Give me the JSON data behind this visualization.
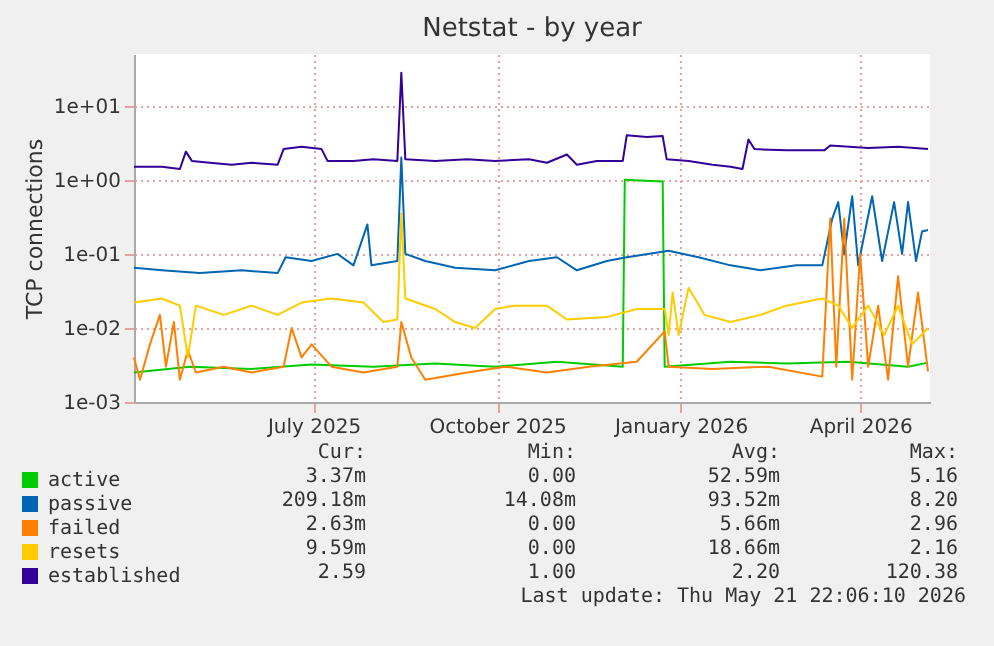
{
  "chart_data": {
    "type": "line",
    "title": "Netstat - by year",
    "ylabel": "TCP connections",
    "log": "y",
    "grid": true,
    "legend": "bottom",
    "line_style": "solid",
    "ylim": [
      0.001,
      50
    ],
    "yticks": [
      {
        "value": 0.001,
        "label": "1e-03"
      },
      {
        "value": 0.01,
        "label": "1e-02"
      },
      {
        "value": 0.1,
        "label": "1e-01"
      },
      {
        "value": 1,
        "label": "1e+00"
      },
      {
        "value": 10,
        "label": "1e+01"
      }
    ],
    "xlim": [
      "2025-04-17",
      "2026-05-21"
    ],
    "xticks": [
      {
        "value": "2025-07-16",
        "label": "July 2025"
      },
      {
        "value": "2025-10-16",
        "label": "October 2025"
      },
      {
        "value": "2026-01-16",
        "label": "January 2026"
      },
      {
        "value": "2026-04-16",
        "label": "April 2026"
      }
    ],
    "series": [
      {
        "name": "active",
        "color": "#00cc00",
        "x": [
          "2025-04-17",
          "2025-05-15",
          "2025-06-15",
          "2025-07-15",
          "2025-08-15",
          "2025-09-15",
          "2025-10-15",
          "2025-11-15",
          "2025-12-18",
          "2025-12-19",
          "2026-01-07",
          "2026-01-08",
          "2026-02-10",
          "2026-03-10",
          "2026-04-10",
          "2026-05-10",
          "2026-05-20"
        ],
        "values": [
          0.0025,
          0.003,
          0.0028,
          0.0032,
          0.003,
          0.0033,
          0.003,
          0.0035,
          0.003,
          1.0,
          0.95,
          0.003,
          0.0035,
          0.0033,
          0.0035,
          0.003,
          0.0034
        ]
      },
      {
        "name": "passive",
        "color": "#0066b3",
        "x": [
          "2025-04-17",
          "2025-05-01",
          "2025-05-20",
          "2025-06-10",
          "2025-06-28",
          "2025-07-02",
          "2025-07-15",
          "2025-07-28",
          "2025-08-05",
          "2025-08-12",
          "2025-08-14",
          "2025-08-27",
          "2025-08-29",
          "2025-08-31",
          "2025-09-10",
          "2025-09-25",
          "2025-10-15",
          "2025-11-01",
          "2025-11-15",
          "2025-11-25",
          "2025-12-10",
          "2025-12-20",
          "2026-01-10",
          "2026-01-25",
          "2026-02-10",
          "2026-02-25",
          "2026-03-15",
          "2026-03-28",
          "2026-04-02",
          "2026-04-05",
          "2026-04-08",
          "2026-04-12",
          "2026-04-15",
          "2026-04-22",
          "2026-04-27",
          "2026-05-03",
          "2026-05-07",
          "2026-05-10",
          "2026-05-14",
          "2026-05-17",
          "2026-05-20"
        ],
        "values": [
          0.065,
          0.06,
          0.055,
          0.06,
          0.055,
          0.09,
          0.08,
          0.1,
          0.07,
          0.25,
          0.07,
          0.08,
          2.0,
          0.1,
          0.08,
          0.065,
          0.06,
          0.08,
          0.09,
          0.06,
          0.08,
          0.09,
          0.11,
          0.09,
          0.07,
          0.06,
          0.07,
          0.07,
          0.3,
          0.5,
          0.1,
          0.6,
          0.07,
          0.6,
          0.08,
          0.5,
          0.1,
          0.5,
          0.08,
          0.2,
          0.21
        ]
      },
      {
        "name": "failed",
        "color": "#ff8000",
        "x": [
          "2025-04-17",
          "2025-04-20",
          "2025-04-25",
          "2025-04-30",
          "2025-05-03",
          "2025-05-07",
          "2025-05-10",
          "2025-05-14",
          "2025-05-18",
          "2025-06-01",
          "2025-06-15",
          "2025-07-01",
          "2025-07-05",
          "2025-07-10",
          "2025-07-15",
          "2025-07-25",
          "2025-08-10",
          "2025-08-27",
          "2025-08-29",
          "2025-09-03",
          "2025-09-10",
          "2025-10-01",
          "2025-10-20",
          "2025-11-10",
          "2025-12-01",
          "2025-12-25",
          "2026-01-08",
          "2026-01-10",
          "2026-02-01",
          "2026-03-01",
          "2026-03-28",
          "2026-04-01",
          "2026-04-04",
          "2026-04-08",
          "2026-04-12",
          "2026-04-16",
          "2026-04-20",
          "2026-04-25",
          "2026-04-30",
          "2026-05-05",
          "2026-05-10",
          "2026-05-15",
          "2026-05-20"
        ],
        "values": [
          0.004,
          0.002,
          0.006,
          0.015,
          0.003,
          0.012,
          0.002,
          0.005,
          0.0025,
          0.003,
          0.0025,
          0.003,
          0.01,
          0.004,
          0.006,
          0.003,
          0.0025,
          0.003,
          0.012,
          0.004,
          0.002,
          0.0025,
          0.003,
          0.0025,
          0.003,
          0.0035,
          0.009,
          0.003,
          0.0028,
          0.003,
          0.0022,
          0.3,
          0.003,
          0.3,
          0.002,
          0.1,
          0.003,
          0.02,
          0.002,
          0.05,
          0.003,
          0.03,
          0.0026
        ]
      },
      {
        "name": "resets",
        "color": "#ffcc00",
        "x": [
          "2025-04-17",
          "2025-05-01",
          "2025-05-10",
          "2025-05-14",
          "2025-05-18",
          "2025-06-01",
          "2025-06-15",
          "2025-06-28",
          "2025-07-10",
          "2025-07-25",
          "2025-08-10",
          "2025-08-20",
          "2025-08-27",
          "2025-08-29",
          "2025-08-31",
          "2025-09-15",
          "2025-09-25",
          "2025-10-05",
          "2025-10-15",
          "2025-10-25",
          "2025-11-10",
          "2025-11-20",
          "2025-12-10",
          "2025-12-25",
          "2026-01-08",
          "2026-01-10",
          "2026-01-12",
          "2026-01-15",
          "2026-01-20",
          "2026-01-28",
          "2026-02-10",
          "2026-02-25",
          "2026-03-10",
          "2026-03-28",
          "2026-04-05",
          "2026-04-12",
          "2026-04-20",
          "2026-04-28",
          "2026-05-05",
          "2026-05-12",
          "2026-05-20"
        ],
        "values": [
          0.022,
          0.025,
          0.02,
          0.004,
          0.02,
          0.015,
          0.02,
          0.015,
          0.022,
          0.025,
          0.022,
          0.012,
          0.013,
          0.35,
          0.025,
          0.018,
          0.012,
          0.01,
          0.018,
          0.02,
          0.02,
          0.013,
          0.014,
          0.018,
          0.018,
          0.008,
          0.03,
          0.008,
          0.035,
          0.015,
          0.012,
          0.015,
          0.02,
          0.025,
          0.02,
          0.01,
          0.02,
          0.008,
          0.02,
          0.006,
          0.01
        ]
      },
      {
        "name": "established",
        "color": "#330099",
        "x": [
          "2025-04-17",
          "2025-05-01",
          "2025-05-10",
          "2025-05-13",
          "2025-05-16",
          "2025-05-25",
          "2025-06-05",
          "2025-06-15",
          "2025-06-28",
          "2025-07-01",
          "2025-07-10",
          "2025-07-20",
          "2025-07-23",
          "2025-08-05",
          "2025-08-15",
          "2025-08-27",
          "2025-08-29",
          "2025-08-31",
          "2025-09-15",
          "2025-10-01",
          "2025-10-15",
          "2025-11-01",
          "2025-11-10",
          "2025-11-20",
          "2025-11-25",
          "2025-12-05",
          "2025-12-18",
          "2025-12-20",
          "2025-12-30",
          "2026-01-07",
          "2026-01-09",
          "2026-01-20",
          "2026-02-01",
          "2026-02-10",
          "2026-02-16",
          "2026-02-19",
          "2026-02-22",
          "2026-03-10",
          "2026-03-29",
          "2026-04-01",
          "2026-04-20",
          "2026-05-05",
          "2026-05-20"
        ],
        "values": [
          1.5,
          1.5,
          1.4,
          2.4,
          1.8,
          1.7,
          1.6,
          1.7,
          1.6,
          2.6,
          2.8,
          2.6,
          1.8,
          1.8,
          1.9,
          1.8,
          28,
          1.9,
          1.8,
          1.9,
          1.8,
          1.9,
          1.7,
          2.2,
          1.6,
          1.8,
          1.8,
          4.0,
          3.8,
          3.9,
          1.9,
          1.8,
          1.6,
          1.5,
          1.4,
          3.5,
          2.6,
          2.5,
          2.5,
          2.9,
          2.7,
          2.8,
          2.6
        ]
      }
    ],
    "annotations": [
      "Cur:",
      "Min:",
      "Avg:",
      "Max:",
      "3.37m",
      "0.00",
      "52.59m",
      "5.16",
      "209.18m",
      "14.08m",
      "93.52m",
      "8.20",
      "2.63m",
      "0.00",
      "5.66m",
      "2.96",
      "9.59m",
      "0.00",
      "18.66m",
      "2.16",
      "2.59",
      "1.00",
      "2.20",
      "120.38",
      "Last update: Thu May 21 22:06:10 2026"
    ]
  }
}
